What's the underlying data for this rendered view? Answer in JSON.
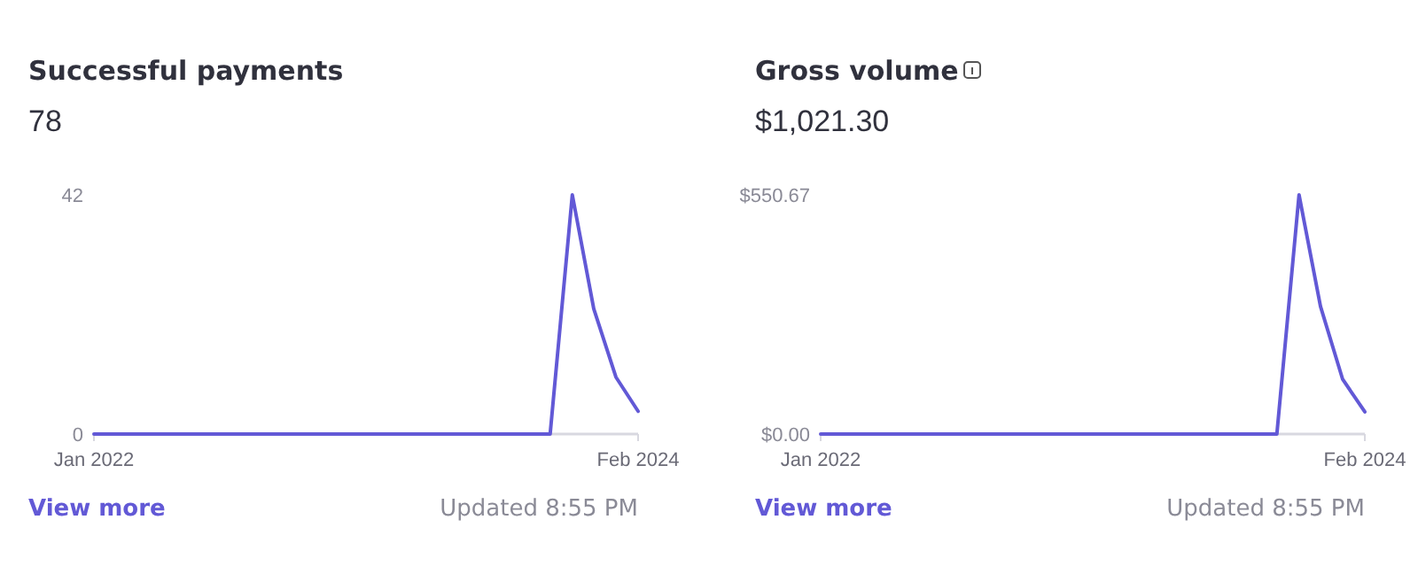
{
  "chart_data": [
    {
      "type": "line",
      "title": "Successful payments",
      "subtitle": "78",
      "x": [
        "2022-01",
        "2022-02",
        "2022-03",
        "2022-04",
        "2022-05",
        "2022-06",
        "2022-07",
        "2022-08",
        "2022-09",
        "2022-10",
        "2022-11",
        "2022-12",
        "2023-01",
        "2023-02",
        "2023-03",
        "2023-04",
        "2023-05",
        "2023-06",
        "2023-07",
        "2023-08",
        "2023-09",
        "2023-10",
        "2023-11",
        "2023-12",
        "2024-01",
        "2024-02"
      ],
      "series": [
        {
          "color": "#6259d6",
          "values": [
            0,
            0,
            0,
            0,
            0,
            0,
            0,
            0,
            0,
            0,
            0,
            0,
            0,
            0,
            0,
            0,
            0,
            0,
            0,
            0,
            0,
            0,
            42,
            22,
            10,
            4
          ]
        }
      ],
      "xlim": [
        "2022-01",
        "2024-02"
      ],
      "xticks": [
        {
          "value": "2022-01",
          "label": "Jan 2022"
        },
        {
          "value": "2024-02",
          "label": "Feb 2024"
        }
      ],
      "ylim": [
        0,
        42
      ],
      "yticks": [
        0,
        42
      ],
      "grid": false,
      "marker": "none",
      "line_style": "solid",
      "annotations": [
        "View more",
        "Updated 8:55 PM"
      ]
    },
    {
      "type": "line",
      "title": "Gross volume",
      "subtitle": "$1,021.30",
      "x": [
        "2022-01",
        "2022-02",
        "2022-03",
        "2022-04",
        "2022-05",
        "2022-06",
        "2022-07",
        "2022-08",
        "2022-09",
        "2022-10",
        "2022-11",
        "2022-12",
        "2023-01",
        "2023-02",
        "2023-03",
        "2023-04",
        "2023-05",
        "2023-06",
        "2023-07",
        "2023-08",
        "2023-09",
        "2023-10",
        "2023-11",
        "2023-12",
        "2024-01",
        "2024-02"
      ],
      "series": [
        {
          "color": "#6259d6",
          "values": [
            0,
            0,
            0,
            0,
            0,
            0,
            0,
            0,
            0,
            0,
            0,
            0,
            0,
            0,
            0,
            0,
            0,
            0,
            0,
            0,
            0,
            0,
            550.67,
            294,
            126,
            51
          ]
        }
      ],
      "xlim": [
        "2022-01",
        "2024-02"
      ],
      "xticks": [
        {
          "value": "2022-01",
          "label": "Jan 2022"
        },
        {
          "value": "2024-02",
          "label": "Feb 2024"
        }
      ],
      "ylim": [
        0,
        550.67
      ],
      "yticks": [
        {
          "value": 0,
          "label": "$0.00"
        },
        {
          "value": 550.67,
          "label": "$550.67"
        }
      ],
      "grid": false,
      "marker": "none",
      "line_style": "solid",
      "annotations": [
        "View more",
        "Updated 8:55 PM"
      ]
    }
  ]
}
